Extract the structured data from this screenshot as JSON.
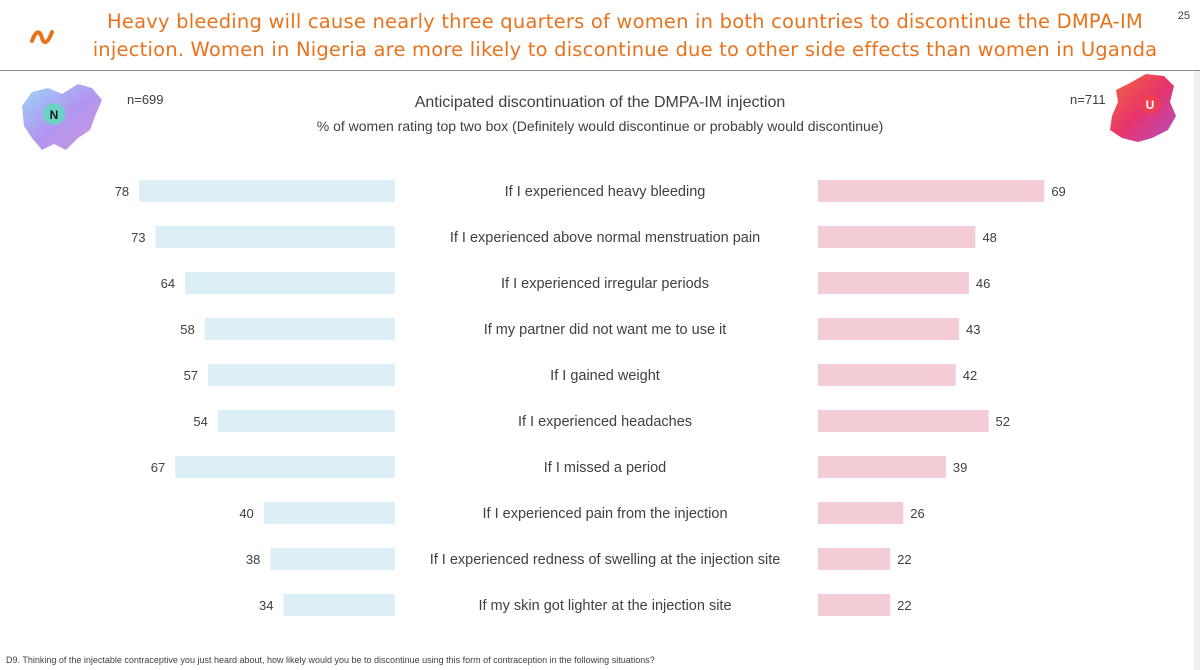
{
  "header": {
    "headline": "Heavy bleeding will cause nearly three quarters of women in both countries to discontinue the DMPA-IM injection. Women in Nigeria are more likely to discontinue due to other side effects than women in Uganda",
    "page_number": "25",
    "logo_icon": "squiggle-logo-icon"
  },
  "nigeria": {
    "map_letter": "N",
    "sample": "n=699",
    "bar_color": "#DCEEF6"
  },
  "uganda": {
    "map_letter": "U",
    "sample": "n=711",
    "bar_color": "#F4CCD5"
  },
  "chart_data": {
    "type": "bar",
    "title": "Anticipated discontinuation of the DMPA-IM injection",
    "subtitle": "% of women rating top two box (Definitely would discontinue or probably would discontinue)",
    "categories": [
      "If I experienced heavy bleeding",
      "If I experienced above normal menstruation pain",
      "If I experienced irregular periods",
      "If my partner did not want me to use it",
      "If I gained weight",
      "If I experienced headaches",
      "If I missed a period",
      "If I experienced pain from the injection",
      "If I experienced redness of swelling at the injection site",
      "If my skin got lighter at the injection site"
    ],
    "series": [
      {
        "name": "N",
        "values": [
          78,
          73,
          64,
          58,
          57,
          54,
          67,
          40,
          38,
          34
        ]
      },
      {
        "name": "U",
        "values": [
          69,
          48,
          46,
          43,
          42,
          52,
          39,
          26,
          22,
          22
        ]
      }
    ],
    "xlim": [
      0,
      80
    ],
    "grid": false
  },
  "footnote": "D9. Thinking of the injectable contraceptive you just heard about, how likely would you be to discontinue using this form of contraception in the following situations?"
}
